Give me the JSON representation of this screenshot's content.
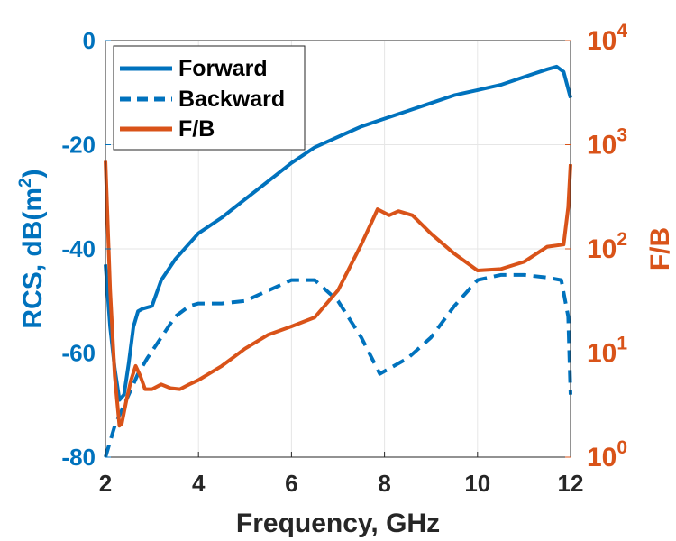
{
  "chart_data": {
    "type": "line",
    "xlabel": "Frequency, GHz",
    "ylabel_left": {
      "text": "RCS, dB(m",
      "sup": "2",
      "close": ")"
    },
    "ylabel_right": "F/B",
    "xlim": [
      2,
      12
    ],
    "ylim_left": [
      -80,
      0
    ],
    "ylim_right": [
      1,
      10000
    ],
    "yscale_right": "log",
    "grid": true,
    "legend_location": "top-left",
    "x_ticks": [
      "2",
      "4",
      "6",
      "8",
      "10",
      "12"
    ],
    "y_left_ticks": [
      "0",
      "-20",
      "-40",
      "-60",
      "-80"
    ],
    "y_right_ticks": [
      {
        "base": "10",
        "exp": "4"
      },
      {
        "base": "10",
        "exp": "3"
      },
      {
        "base": "10",
        "exp": "2"
      },
      {
        "base": "10",
        "exp": "1"
      },
      {
        "base": "10",
        "exp": "0"
      }
    ],
    "colors": {
      "left_axis": "#0072BD",
      "right_axis": "#D95319"
    },
    "series": [
      {
        "name": "Forward",
        "axis": "left",
        "style": "solid",
        "color": "#0072BD",
        "x": [
          2.0,
          2.1,
          2.2,
          2.3,
          2.4,
          2.5,
          2.6,
          2.7,
          2.8,
          3.0,
          3.2,
          3.5,
          3.8,
          4.0,
          4.5,
          5.0,
          5.5,
          6.0,
          6.5,
          7.0,
          7.5,
          8.0,
          8.5,
          9.0,
          9.5,
          10.0,
          10.5,
          11.0,
          11.5,
          11.7,
          11.85,
          12.0
        ],
        "y": [
          -43,
          -55,
          -63,
          -69,
          -68,
          -62,
          -55,
          -52,
          -51.5,
          -51,
          -46,
          -42,
          -39,
          -37,
          -34,
          -30.5,
          -27,
          -23.5,
          -20.5,
          -18.5,
          -16.5,
          -15,
          -13.5,
          -12,
          -10.5,
          -9.5,
          -8.5,
          -7,
          -5.5,
          -5,
          -6,
          -11
        ]
      },
      {
        "name": "Backward",
        "axis": "left",
        "style": "dashed",
        "color": "#0072BD",
        "x": [
          2.0,
          2.2,
          2.3,
          2.5,
          2.7,
          2.9,
          3.2,
          3.5,
          3.8,
          4.0,
          4.5,
          5.0,
          5.5,
          6.0,
          6.5,
          7.0,
          7.5,
          7.9,
          8.5,
          9.0,
          9.5,
          10.0,
          10.5,
          11.0,
          11.5,
          11.8,
          11.95,
          12.0
        ],
        "y": [
          -80,
          -74,
          -72,
          -68,
          -64,
          -61,
          -57,
          -53,
          -51,
          -50.5,
          -50.5,
          -50,
          -48,
          -46,
          -46,
          -50,
          -57,
          -64,
          -61,
          -57,
          -51,
          -46,
          -45,
          -45,
          -45.5,
          -46,
          -53,
          -68
        ]
      },
      {
        "name": "F/B",
        "axis": "right",
        "style": "solid",
        "color": "#D95319",
        "x": [
          2.0,
          2.1,
          2.2,
          2.3,
          2.35,
          2.45,
          2.55,
          2.65,
          2.75,
          2.85,
          3.0,
          3.2,
          3.4,
          3.6,
          3.8,
          4.0,
          4.5,
          5.0,
          5.5,
          6.0,
          6.5,
          7.0,
          7.5,
          7.85,
          8.1,
          8.3,
          8.6,
          9.0,
          9.5,
          10.0,
          10.5,
          11.0,
          11.5,
          11.85,
          11.95,
          12.0
        ],
        "y": [
          700,
          40,
          6,
          2.0,
          2.1,
          3.5,
          5.5,
          7.5,
          6.0,
          4.5,
          4.5,
          5.0,
          4.6,
          4.5,
          5.0,
          5.5,
          7.5,
          11.0,
          15.0,
          18.0,
          22.0,
          40.0,
          110.0,
          240.0,
          210.0,
          230.0,
          210.0,
          140.0,
          90.0,
          62.0,
          64.0,
          75.0,
          105.0,
          110.0,
          250.0,
          650.0
        ]
      }
    ]
  }
}
